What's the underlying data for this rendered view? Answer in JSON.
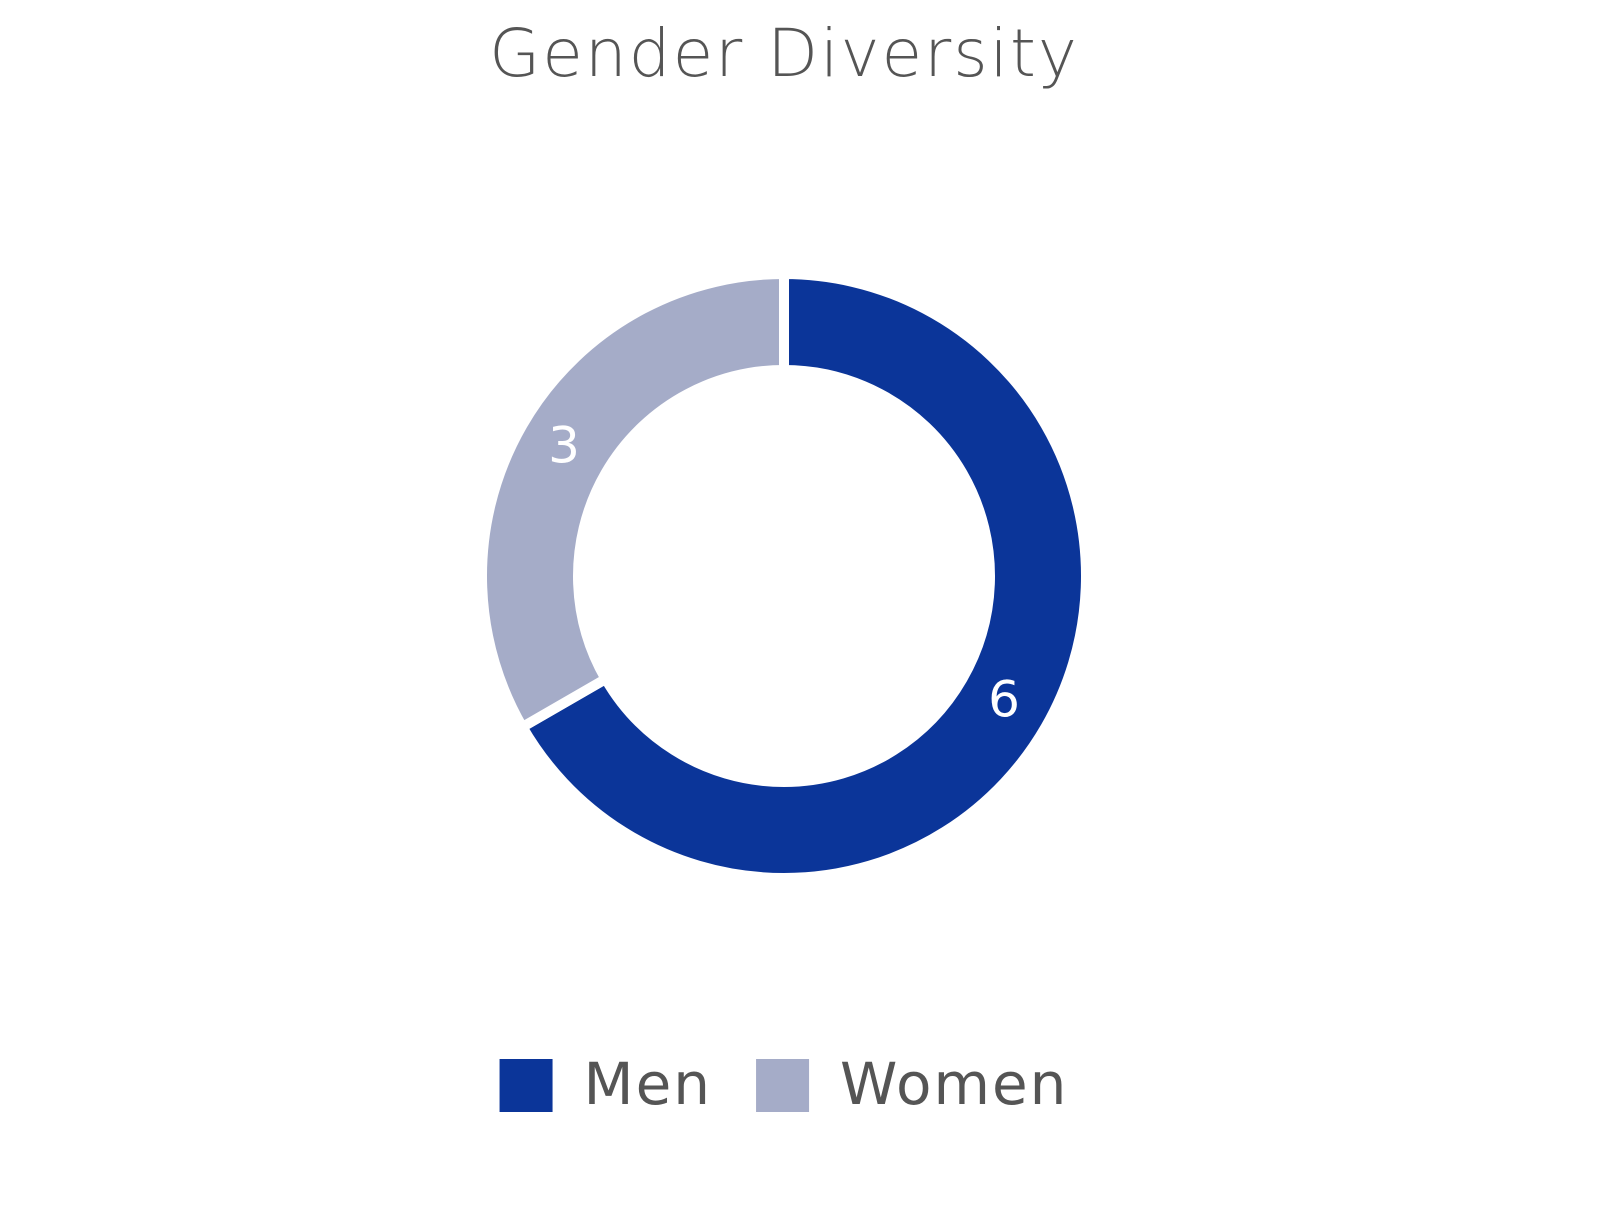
{
  "chart_data": {
    "type": "donut",
    "title": "Gender Diversity",
    "series": [
      {
        "name": "Men",
        "color": "#0b3599",
        "values": [
          6
        ]
      },
      {
        "name": "Women",
        "color": "#a5acc8",
        "values": [
          3
        ]
      }
    ],
    "legend": "bottom"
  }
}
